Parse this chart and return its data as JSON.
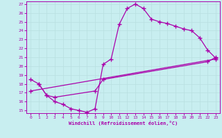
{
  "xlabel": "Windchill (Refroidissement éolien,°C)",
  "bg_color": "#c8eef0",
  "line_color": "#aa00aa",
  "grid_color": "#b8dfe0",
  "xlim": [
    -0.5,
    23.5
  ],
  "ylim": [
    14.7,
    27.3
  ],
  "xticks": [
    0,
    1,
    2,
    3,
    4,
    5,
    6,
    7,
    8,
    9,
    10,
    11,
    12,
    13,
    14,
    15,
    16,
    17,
    18,
    19,
    20,
    21,
    22,
    23
  ],
  "yticks": [
    15,
    16,
    17,
    18,
    19,
    20,
    21,
    22,
    23,
    24,
    25,
    26,
    27
  ],
  "line1_x": [
    0,
    1,
    2,
    3,
    4,
    5,
    6,
    7,
    8,
    9,
    10,
    11,
    12,
    13,
    14,
    15,
    16,
    17,
    18,
    19,
    20,
    21,
    22,
    23
  ],
  "line1_y": [
    18.5,
    18.0,
    16.7,
    16.0,
    15.7,
    15.2,
    15.0,
    14.8,
    15.2,
    20.2,
    20.8,
    24.7,
    26.5,
    27.0,
    26.5,
    25.3,
    25.0,
    24.8,
    24.5,
    24.2,
    24.0,
    23.2,
    21.8,
    20.9
  ],
  "line2_x": [
    1,
    2,
    3,
    8,
    9,
    22,
    23
  ],
  "line2_y": [
    18.0,
    16.7,
    16.5,
    17.2,
    18.5,
    20.5,
    21.0
  ],
  "line3_x": [
    0,
    23
  ],
  "line3_y": [
    17.2,
    20.8
  ]
}
